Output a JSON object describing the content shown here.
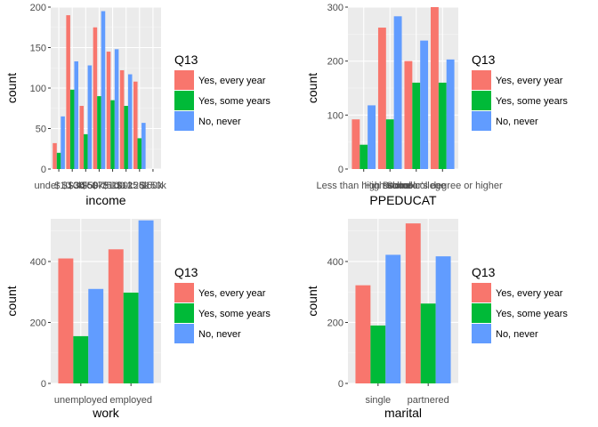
{
  "colors": {
    "panel_bg": "#ebebeb",
    "grid_major": "#ffffff",
    "grid_minor": "#f5f5f5",
    "tick": "#333333",
    "series": [
      "#f8766d",
      "#00ba38",
      "#619cff"
    ]
  },
  "chart_data": [
    {
      "type": "bar",
      "title": "",
      "xlabel": "income",
      "ylabel": "count",
      "categories": [
        "under $10k",
        "$10-30k",
        "$30-50k",
        "$50-75k",
        "$75-100k",
        "$100-125k",
        "$125-150k",
        "$150k"
      ],
      "ylim": [
        0,
        200
      ],
      "yticks": [
        0,
        50,
        100,
        150,
        200
      ],
      "grid": true,
      "legend": {
        "title": "Q13",
        "position": "right"
      },
      "series": [
        {
          "name": "Yes, every year",
          "values": [
            32,
            190,
            78,
            175,
            145,
            122,
            108,
            0
          ]
        },
        {
          "name": "Yes, some years",
          "values": [
            20,
            98,
            43,
            90,
            85,
            78,
            38,
            0
          ]
        },
        {
          "name": "No, never",
          "values": [
            65,
            133,
            128,
            195,
            148,
            117,
            57,
            0
          ]
        }
      ]
    },
    {
      "type": "bar",
      "title": "",
      "xlabel": "PPEDUCAT",
      "ylabel": "count",
      "categories": [
        "Less than high school",
        "High school",
        "Some college",
        "Bachelor's degree or higher"
      ],
      "ylim": [
        0,
        300
      ],
      "yticks": [
        0,
        100,
        200,
        300
      ],
      "grid": true,
      "legend": {
        "title": "Q13",
        "position": "right"
      },
      "series": [
        {
          "name": "Yes, every year",
          "values": [
            92,
            262,
            200,
            300
          ]
        },
        {
          "name": "Yes, some years",
          "values": [
            45,
            92,
            160,
            160
          ]
        },
        {
          "name": "No, never",
          "values": [
            118,
            283,
            238,
            203
          ]
        }
      ]
    },
    {
      "type": "bar",
      "title": "",
      "xlabel": "work",
      "ylabel": "count",
      "categories": [
        "unemployed",
        "employed"
      ],
      "ylim": [
        0,
        540
      ],
      "yticks": [
        0,
        200,
        400
      ],
      "grid": true,
      "legend": {
        "title": "Q13",
        "position": "right"
      },
      "series": [
        {
          "name": "Yes, every year",
          "values": [
            410,
            440
          ]
        },
        {
          "name": "Yes, some years",
          "values": [
            155,
            298
          ]
        },
        {
          "name": "No, never",
          "values": [
            310,
            535
          ]
        }
      ]
    },
    {
      "type": "bar",
      "title": "",
      "xlabel": "marital",
      "ylabel": "count",
      "categories": [
        "single",
        "partnered"
      ],
      "ylim": [
        0,
        540
      ],
      "yticks": [
        0,
        200,
        400
      ],
      "grid": true,
      "legend": {
        "title": "Q13",
        "position": "right"
      },
      "series": [
        {
          "name": "Yes, every year",
          "values": [
            322,
            525
          ]
        },
        {
          "name": "Yes, some years",
          "values": [
            190,
            262
          ]
        },
        {
          "name": "No, never",
          "values": [
            422,
            417
          ]
        }
      ]
    }
  ]
}
